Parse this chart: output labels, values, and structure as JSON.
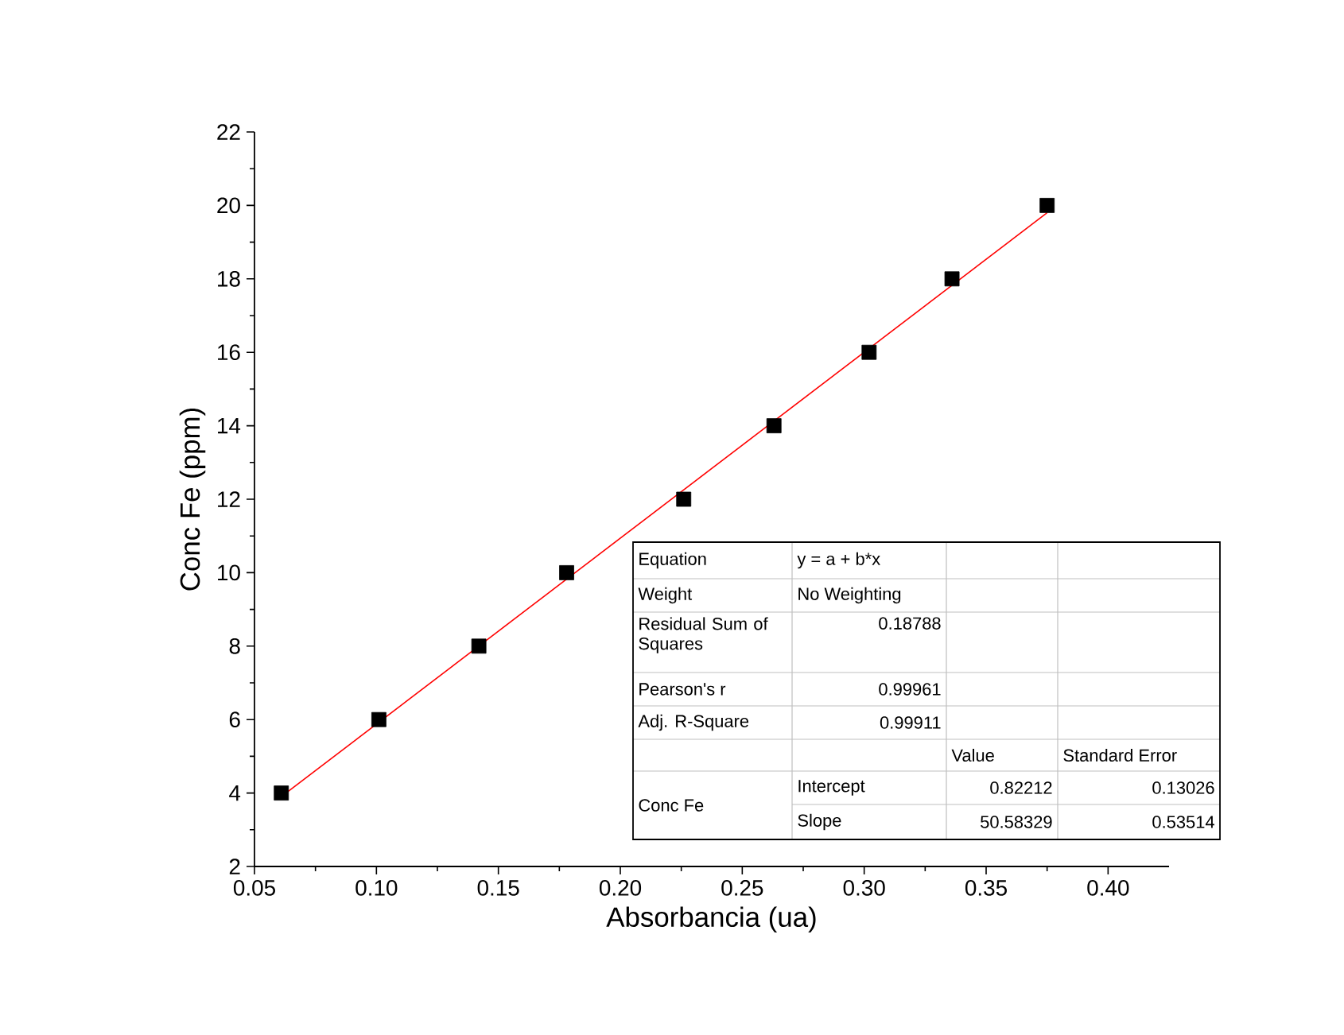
{
  "chart_data": {
    "type": "scatter",
    "xlabel": "Absorbancia (ua)",
    "ylabel": "Conc Fe (ppm)",
    "x": [
      0.061,
      0.101,
      0.142,
      0.178,
      0.226,
      0.263,
      0.302,
      0.336,
      0.375
    ],
    "series": [
      {
        "color": "#000000",
        "marker": "square",
        "values": [
          4,
          6,
          8,
          10,
          12,
          14,
          16,
          18,
          20
        ]
      },
      {
        "type": "line",
        "color": "#ff0000",
        "marker": "none",
        "line_style": "solid",
        "x": [
          0.061,
          0.375
        ],
        "values": [
          3.9,
          19.8
        ]
      }
    ],
    "xlim": [
      0.05,
      0.425
    ],
    "xticks": [
      0.05,
      {
        "value": 0.1,
        "label": "0.10"
      },
      0.15,
      {
        "value": 0.2,
        "label": "0.20"
      },
      0.25,
      {
        "value": 0.3,
        "label": "0.30"
      },
      0.35,
      {
        "value": 0.4,
        "label": "0.40"
      }
    ],
    "ylim": [
      2,
      22
    ],
    "yticks": [
      2,
      4,
      6,
      8,
      10,
      12,
      14,
      16,
      18,
      20,
      22
    ],
    "grid": false,
    "annotations": [
      "Equation",
      "y = a + b*x",
      "Weight",
      "No Weighting",
      "Residual Sum of Squares",
      "0.18788",
      "Pearson's r",
      "0.99961",
      "Adj. R-Square",
      "0.99911",
      "Value",
      "Standard Error",
      "Conc Fe",
      "Intercept",
      "0.82212",
      "0.13026",
      "Slope",
      "50.58329",
      "0.53514"
    ]
  }
}
